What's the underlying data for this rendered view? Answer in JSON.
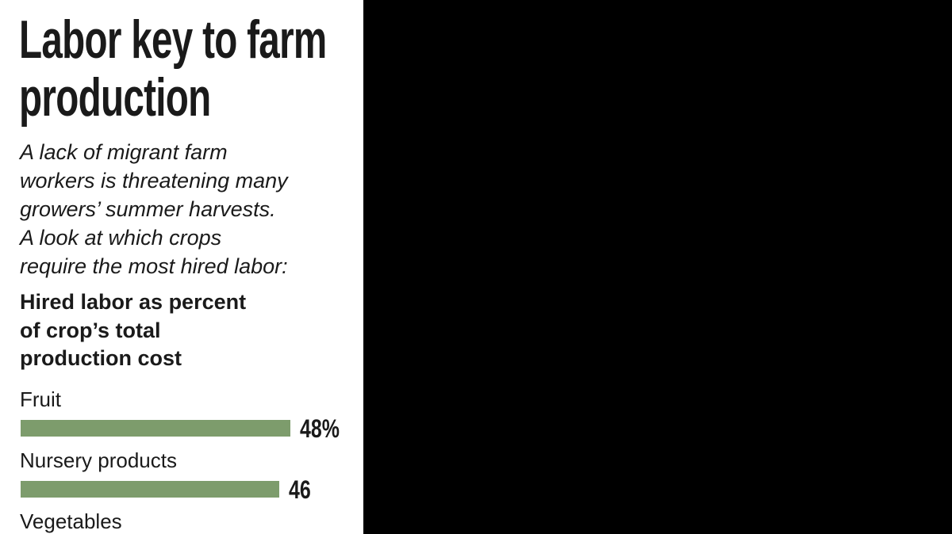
{
  "chart_data": {
    "type": "bar",
    "orientation": "horizontal",
    "title": "Labor key to farm production",
    "subtitle": [
      "A lack of migrant farm",
      "workers is threatening many",
      "growers’ summer harvests.",
      "A look at which crops",
      "require the most hired labor:"
    ],
    "xlabel": [
      "Hired labor as percent",
      "of crop’s total",
      "production cost"
    ],
    "categories": [
      "Fruit",
      "Nursery products",
      "Vegetables"
    ],
    "values": [
      48,
      46,
      null
    ],
    "value_labels": [
      "48%",
      "46",
      null
    ],
    "color": "#7d9c6c"
  }
}
